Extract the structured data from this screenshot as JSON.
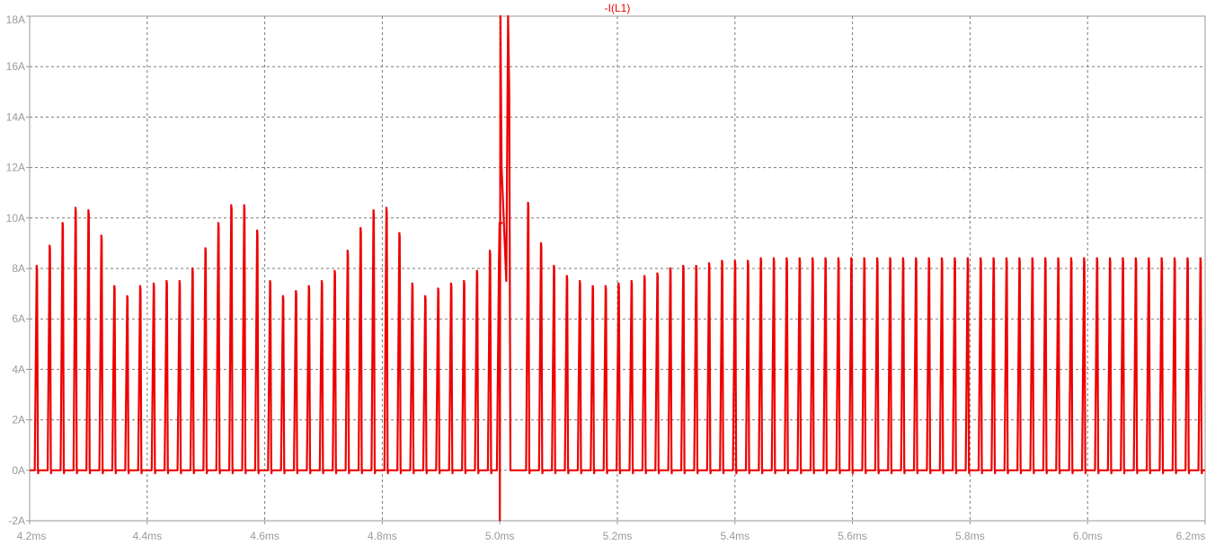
{
  "chart_data": {
    "type": "line",
    "title": "-I(L1)",
    "xlabel": "",
    "ylabel": "",
    "xlim": [
      4.2,
      6.2
    ],
    "ylim": [
      -2,
      18
    ],
    "x_unit": "ms",
    "y_unit": "A",
    "x_ticks": [
      "4.2ms",
      "4.4ms",
      "4.6ms",
      "4.8ms",
      "5.0ms",
      "5.2ms",
      "5.4ms",
      "5.6ms",
      "5.8ms",
      "6.0ms",
      "6.2ms"
    ],
    "y_ticks": [
      "-2A",
      "0A",
      "2A",
      "4A",
      "6A",
      "8A",
      "10A",
      "12A",
      "14A",
      "16A",
      "18A"
    ],
    "grid": true,
    "color": "#ee0000",
    "series": [
      {
        "name": "-I(L1)",
        "baseline": 0,
        "pulse_width_ms": 0.008,
        "pulse_period_ms": 0.0225,
        "peaks": [
          {
            "t": 4.212,
            "v": 8.1
          },
          {
            "t": 4.234,
            "v": 8.9
          },
          {
            "t": 4.256,
            "v": 9.8
          },
          {
            "t": 4.278,
            "v": 10.4
          },
          {
            "t": 4.3,
            "v": 10.3
          },
          {
            "t": 4.322,
            "v": 9.3
          },
          {
            "t": 4.344,
            "v": 7.3
          },
          {
            "t": 4.366,
            "v": 6.9
          },
          {
            "t": 4.388,
            "v": 7.3
          },
          {
            "t": 4.411,
            "v": 7.4
          },
          {
            "t": 4.433,
            "v": 7.5
          },
          {
            "t": 4.455,
            "v": 7.5
          },
          {
            "t": 4.477,
            "v": 8.0
          },
          {
            "t": 4.499,
            "v": 8.8
          },
          {
            "t": 4.521,
            "v": 9.8
          },
          {
            "t": 4.543,
            "v": 10.5
          },
          {
            "t": 4.565,
            "v": 10.5
          },
          {
            "t": 4.587,
            "v": 9.5
          },
          {
            "t": 4.609,
            "v": 7.5
          },
          {
            "t": 4.631,
            "v": 6.9
          },
          {
            "t": 4.653,
            "v": 7.1
          },
          {
            "t": 4.675,
            "v": 7.3
          },
          {
            "t": 4.697,
            "v": 7.5
          },
          {
            "t": 4.719,
            "v": 7.9
          },
          {
            "t": 4.741,
            "v": 8.7
          },
          {
            "t": 4.763,
            "v": 9.6
          },
          {
            "t": 4.785,
            "v": 10.3
          },
          {
            "t": 4.807,
            "v": 10.4
          },
          {
            "t": 4.829,
            "v": 9.4
          },
          {
            "t": 4.851,
            "v": 7.4
          },
          {
            "t": 4.873,
            "v": 6.9
          },
          {
            "t": 4.895,
            "v": 7.2
          },
          {
            "t": 4.917,
            "v": 7.4
          },
          {
            "t": 4.939,
            "v": 7.5
          },
          {
            "t": 4.961,
            "v": 7.9
          },
          {
            "t": 4.983,
            "v": 8.7
          },
          {
            "t": 5.003,
            "v": 9.8
          },
          {
            "t": 5.048,
            "v": 10.6
          },
          {
            "t": 5.07,
            "v": 9.0
          },
          {
            "t": 5.092,
            "v": 8.1
          },
          {
            "t": 5.114,
            "v": 7.7
          },
          {
            "t": 5.136,
            "v": 7.5
          },
          {
            "t": 5.158,
            "v": 7.3
          },
          {
            "t": 5.18,
            "v": 7.3
          },
          {
            "t": 5.202,
            "v": 7.4
          },
          {
            "t": 5.224,
            "v": 7.5
          },
          {
            "t": 5.246,
            "v": 7.7
          },
          {
            "t": 5.268,
            "v": 7.8
          },
          {
            "t": 5.29,
            "v": 8.0
          },
          {
            "t": 5.312,
            "v": 8.1
          },
          {
            "t": 5.334,
            "v": 8.1
          },
          {
            "t": 5.356,
            "v": 8.2
          },
          {
            "t": 5.378,
            "v": 8.3
          },
          {
            "t": 5.4,
            "v": 8.3
          },
          {
            "t": 5.422,
            "v": 8.3
          },
          {
            "t": 5.444,
            "v": 8.4
          },
          {
            "t": 5.466,
            "v": 8.4
          },
          {
            "t": 5.488,
            "v": 8.4
          },
          {
            "t": 5.51,
            "v": 8.4
          },
          {
            "t": 5.532,
            "v": 8.4
          },
          {
            "t": 5.554,
            "v": 8.4
          },
          {
            "t": 5.576,
            "v": 8.4
          },
          {
            "t": 5.598,
            "v": 8.4
          },
          {
            "t": 5.62,
            "v": 8.4
          },
          {
            "t": 5.642,
            "v": 8.4
          },
          {
            "t": 5.664,
            "v": 8.4
          },
          {
            "t": 5.686,
            "v": 8.4
          },
          {
            "t": 5.708,
            "v": 8.4
          },
          {
            "t": 5.73,
            "v": 8.4
          },
          {
            "t": 5.752,
            "v": 8.4
          },
          {
            "t": 5.774,
            "v": 8.4
          },
          {
            "t": 5.796,
            "v": 8.4
          },
          {
            "t": 5.818,
            "v": 8.4
          },
          {
            "t": 5.84,
            "v": 8.4
          },
          {
            "t": 5.862,
            "v": 8.4
          },
          {
            "t": 5.884,
            "v": 8.4
          },
          {
            "t": 5.906,
            "v": 8.4
          },
          {
            "t": 5.928,
            "v": 8.4
          },
          {
            "t": 5.95,
            "v": 8.4
          },
          {
            "t": 5.972,
            "v": 8.4
          },
          {
            "t": 5.994,
            "v": 8.4
          },
          {
            "t": 6.016,
            "v": 8.4
          },
          {
            "t": 6.038,
            "v": 8.4
          },
          {
            "t": 6.06,
            "v": 8.4
          },
          {
            "t": 6.082,
            "v": 8.4
          },
          {
            "t": 6.104,
            "v": 8.4
          },
          {
            "t": 6.126,
            "v": 8.4
          },
          {
            "t": 6.148,
            "v": 8.4
          },
          {
            "t": 6.17,
            "v": 8.4
          },
          {
            "t": 6.192,
            "v": 8.4
          }
        ],
        "transient": [
          {
            "t": 5.0,
            "v": -2.0
          },
          {
            "t": 5.001,
            "v": 18.0
          },
          {
            "t": 5.003,
            "v": 12.0
          },
          {
            "t": 5.011,
            "v": 7.5
          },
          {
            "t": 5.014,
            "v": 18.0
          },
          {
            "t": 5.016,
            "v": 15.0
          },
          {
            "t": 5.018,
            "v": 0.0
          }
        ]
      }
    ]
  }
}
